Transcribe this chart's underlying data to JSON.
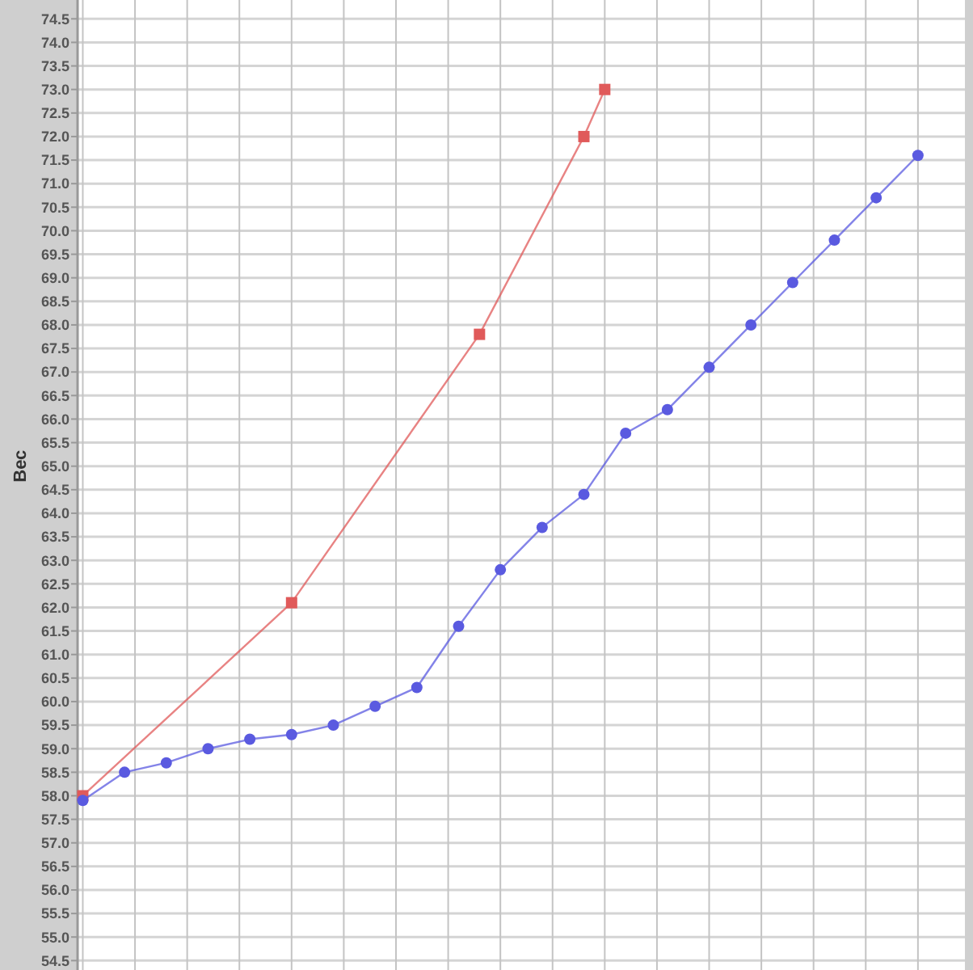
{
  "chart_data": {
    "type": "line",
    "ylabel": "Вес",
    "categories": [
      null,
      null,
      null,
      null,
      null,
      null,
      null,
      null,
      null,
      null,
      null,
      null,
      null,
      null,
      null,
      null,
      null,
      null,
      null,
      null,
      null,
      null,
      null,
      null,
      null,
      null,
      null,
      null,
      null,
      null,
      null,
      null,
      null,
      null,
      null,
      null,
      null,
      null,
      null,
      null,
      null,
      null,
      null,
      null,
      null,
      null,
      null,
      null,
      null,
      null,
      null,
      null,
      null,
      null,
      null,
      null,
      null,
      null,
      null,
      null,
      null,
      null,
      null,
      null,
      null,
      null,
      null,
      null,
      null,
      null,
      null,
      null,
      null,
      null,
      null,
      null,
      null,
      null,
      null,
      null,
      null,
      null,
      null,
      null,
      null
    ],
    "series": [
      {
        "color": "#5a5ae0",
        "marker": "circle",
        "values": [
          57.9,
          null,
          null,
          null,
          58.5,
          null,
          null,
          null,
          58.7,
          null,
          null,
          null,
          59.0,
          null,
          null,
          null,
          59.2,
          null,
          null,
          null,
          59.3,
          null,
          null,
          null,
          59.5,
          null,
          null,
          null,
          59.9,
          null,
          null,
          null,
          60.3,
          null,
          null,
          null,
          61.6,
          null,
          null,
          null,
          62.8,
          null,
          null,
          null,
          63.7,
          null,
          null,
          null,
          64.4,
          null,
          null,
          null,
          65.7,
          null,
          null,
          null,
          66.2,
          null,
          null,
          null,
          67.1,
          null,
          null,
          null,
          68.0,
          null,
          null,
          null,
          68.9,
          null,
          null,
          null,
          69.8,
          null,
          null,
          null,
          70.7,
          null,
          null,
          null,
          71.6,
          null,
          null,
          null,
          null
        ]
      },
      {
        "color": "#e05a5a",
        "marker": "square",
        "values": [
          58.0,
          null,
          null,
          null,
          null,
          null,
          null,
          null,
          null,
          null,
          null,
          null,
          null,
          null,
          null,
          null,
          null,
          null,
          null,
          null,
          62.1,
          null,
          null,
          null,
          null,
          null,
          null,
          null,
          null,
          null,
          null,
          null,
          null,
          null,
          null,
          null,
          null,
          null,
          67.8,
          null,
          null,
          null,
          null,
          null,
          null,
          null,
          null,
          null,
          72.0,
          null,
          73.0,
          null,
          null,
          null,
          null,
          null,
          null,
          null,
          null,
          null,
          null,
          null,
          null,
          null,
          null,
          null,
          null,
          null,
          null,
          null,
          null,
          null,
          null,
          null,
          null,
          null,
          null,
          null,
          null,
          null,
          null,
          null,
          null,
          null,
          null
        ]
      }
    ],
    "ylim": [
      54.3,
      74.9
    ],
    "yticks": [
      {
        "value": 54.5,
        "label": "54.5"
      },
      {
        "value": 55,
        "label": "55.0"
      },
      {
        "value": 55.5,
        "label": "55.5"
      },
      {
        "value": 56,
        "label": "56.0"
      },
      {
        "value": 56.5,
        "label": "56.5"
      },
      {
        "value": 57,
        "label": "57.0"
      },
      {
        "value": 57.5,
        "label": "57.5"
      },
      {
        "value": 58,
        "label": "58.0"
      },
      {
        "value": 58.5,
        "label": "58.5"
      },
      {
        "value": 59,
        "label": "59.0"
      },
      {
        "value": 59.5,
        "label": "59.5"
      },
      {
        "value": 60,
        "label": "60.0"
      },
      {
        "value": 60.5,
        "label": "60.5"
      },
      {
        "value": 61,
        "label": "61.0"
      },
      {
        "value": 61.5,
        "label": "61.5"
      },
      {
        "value": 62,
        "label": "62.0"
      },
      {
        "value": 62.5,
        "label": "62.5"
      },
      {
        "value": 63,
        "label": "63.0"
      },
      {
        "value": 63.5,
        "label": "63.5"
      },
      {
        "value": 64,
        "label": "64.0"
      },
      {
        "value": 64.5,
        "label": "64.5"
      },
      {
        "value": 65,
        "label": "65.0"
      },
      {
        "value": 65.5,
        "label": "65.5"
      },
      {
        "value": 66,
        "label": "66.0"
      },
      {
        "value": 66.5,
        "label": "66.5"
      },
      {
        "value": 67,
        "label": "67.0"
      },
      {
        "value": 67.5,
        "label": "67.5"
      },
      {
        "value": 68,
        "label": "68.0"
      },
      {
        "value": 68.5,
        "label": "68.5"
      },
      {
        "value": 69,
        "label": "69.0"
      },
      {
        "value": 69.5,
        "label": "69.5"
      },
      {
        "value": 70,
        "label": "70.0"
      },
      {
        "value": 70.5,
        "label": "70.5"
      },
      {
        "value": 71,
        "label": "71.0"
      },
      {
        "value": 71.5,
        "label": "71.5"
      },
      {
        "value": 72,
        "label": "72.0"
      },
      {
        "value": 72.5,
        "label": "72.5"
      },
      {
        "value": 73,
        "label": "73.0"
      },
      {
        "value": 73.5,
        "label": "73.5"
      },
      {
        "value": 74,
        "label": "74.0"
      },
      {
        "value": 74.5,
        "label": "74.5"
      }
    ],
    "grid": true,
    "tick_labels": "y",
    "line_style": "solid"
  }
}
